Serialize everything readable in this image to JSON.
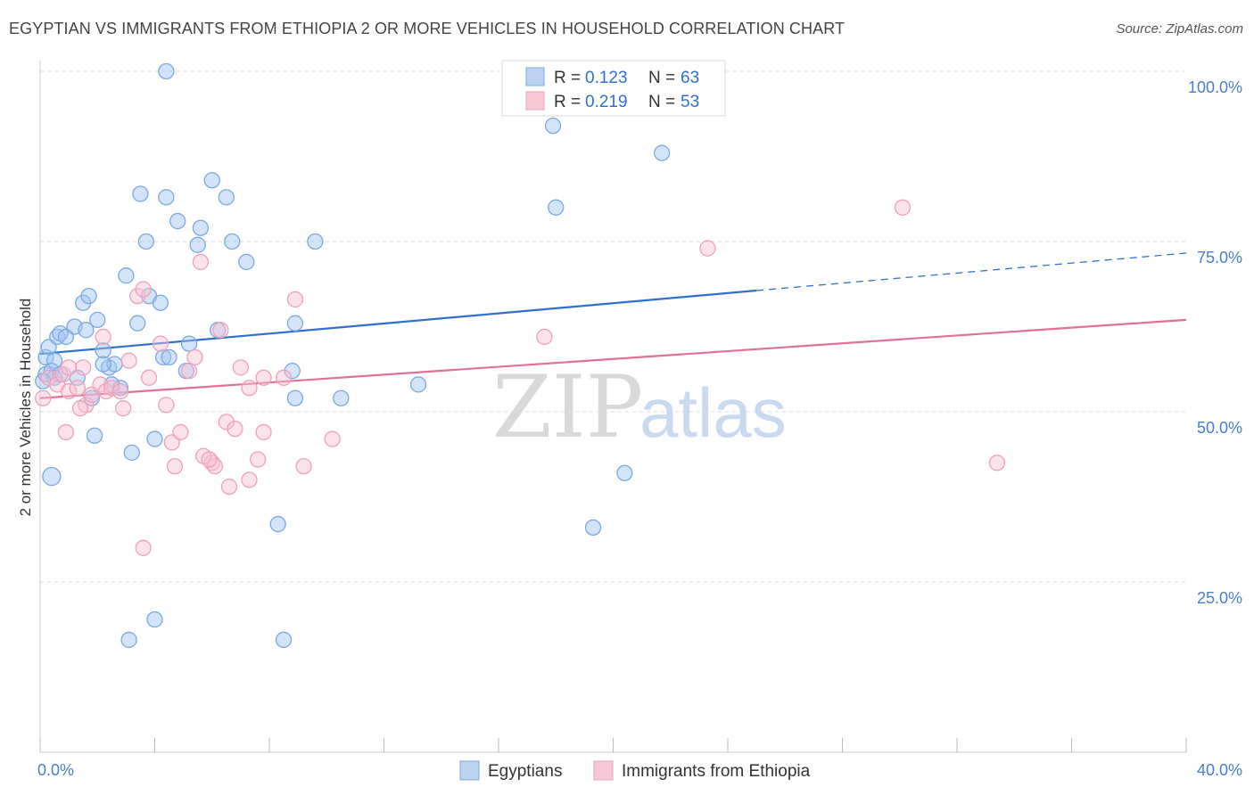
{
  "title": "EGYPTIAN VS IMMIGRANTS FROM ETHIOPIA 2 OR MORE VEHICLES IN HOUSEHOLD CORRELATION CHART",
  "source": "Source: ZipAtlas.com",
  "watermark": {
    "zip": "ZIP",
    "atlas": "atlas"
  },
  "colors": {
    "blue": "#7aa9e0",
    "blue_line": "#2f6fd0",
    "pink": "#f0a0bb",
    "pink_line": "#e07098"
  },
  "legend": {
    "rows": [
      {
        "r_label": "R = ",
        "r_value": "0.123",
        "n_label": "N = ",
        "n_value": "63"
      },
      {
        "r_label": "R = ",
        "r_value": "0.219",
        "n_label": "N = ",
        "n_value": "53"
      }
    ]
  },
  "chart_data": {
    "type": "scatter",
    "title": "EGYPTIAN VS IMMIGRANTS FROM ETHIOPIA 2 OR MORE VEHICLES IN HOUSEHOLD CORRELATION CHART",
    "xlabel": "",
    "ylabel": "2 or more Vehicles in Household",
    "xlim": [
      0,
      40
    ],
    "ylim": [
      0,
      100
    ],
    "x_tick_labels": [
      "0.0%",
      "40.0%"
    ],
    "y_ticks": [
      100,
      75,
      50,
      25
    ],
    "y_tick_labels": [
      "100.0%",
      "75.0%",
      "50.0%",
      "25.0%"
    ],
    "legend_position": "top-center",
    "grid": true,
    "series": [
      {
        "name": "Egyptians",
        "color": "#7aa9e0",
        "trend": {
          "x0": 0,
          "y0": 58.5,
          "x1": 25,
          "y1": 67.8,
          "dash_to_x": 40,
          "dash_to_y": 73.3
        },
        "points": [
          [
            0.2,
            58.0
          ],
          [
            0.3,
            59.5
          ],
          [
            0.5,
            57.5
          ],
          [
            0.6,
            61.0
          ],
          [
            0.7,
            61.5
          ],
          [
            0.9,
            61.0
          ],
          [
            0.2,
            55.5
          ],
          [
            0.4,
            56.0
          ],
          [
            0.5,
            55.0
          ],
          [
            0.7,
            55.5
          ],
          [
            1.2,
            62.5
          ],
          [
            1.5,
            66.0
          ],
          [
            1.7,
            67.0
          ],
          [
            1.6,
            62.0
          ],
          [
            2.0,
            63.5
          ],
          [
            2.2,
            59.0
          ],
          [
            2.4,
            56.5
          ],
          [
            2.6,
            57.0
          ],
          [
            2.8,
            53.5
          ],
          [
            1.3,
            55.0
          ],
          [
            1.8,
            52.0
          ],
          [
            2.2,
            57.0
          ],
          [
            2.5,
            54.0
          ],
          [
            3.0,
            70.0
          ],
          [
            3.4,
            63.0
          ],
          [
            3.5,
            82.0
          ],
          [
            3.7,
            75.0
          ],
          [
            3.8,
            67.0
          ],
          [
            4.2,
            66.0
          ],
          [
            4.3,
            58.0
          ],
          [
            4.5,
            58.0
          ],
          [
            4.4,
            81.5
          ],
          [
            4.8,
            78.0
          ],
          [
            5.2,
            60.0
          ],
          [
            5.5,
            74.5
          ],
          [
            5.6,
            77.0
          ],
          [
            6.0,
            84.0
          ],
          [
            6.2,
            62.0
          ],
          [
            6.5,
            81.5
          ],
          [
            6.7,
            75.0
          ],
          [
            7.2,
            72.0
          ],
          [
            8.9,
            63.0
          ],
          [
            9.6,
            75.0
          ],
          [
            8.8,
            56.0
          ],
          [
            8.9,
            52.0
          ],
          [
            10.5,
            52.0
          ],
          [
            13.2,
            54.0
          ],
          [
            4.4,
            100.0
          ],
          [
            17.9,
            92.0
          ],
          [
            18.0,
            80.0
          ],
          [
            21.7,
            88.0
          ],
          [
            20.4,
            41.0
          ],
          [
            19.3,
            33.0
          ],
          [
            8.3,
            33.5
          ],
          [
            3.1,
            16.5
          ],
          [
            4.0,
            19.5
          ],
          [
            8.5,
            16.5
          ],
          [
            1.9,
            46.5
          ],
          [
            3.2,
            44.0
          ],
          [
            4.0,
            46.0
          ],
          [
            0.4,
            40.5
          ],
          [
            5.1,
            56.0
          ],
          [
            0.1,
            54.5
          ]
        ]
      },
      {
        "name": "Immigrants from Ethiopia",
        "color": "#f0a0bb",
        "trend": {
          "x0": 0,
          "y0": 52.0,
          "x1": 40,
          "y1": 63.5
        },
        "points": [
          [
            0.1,
            52.0
          ],
          [
            0.3,
            55.0
          ],
          [
            0.6,
            54.0
          ],
          [
            0.8,
            55.5
          ],
          [
            1.0,
            53.0
          ],
          [
            1.3,
            53.5
          ],
          [
            1.5,
            56.5
          ],
          [
            1.6,
            51.0
          ],
          [
            1.8,
            52.5
          ],
          [
            2.1,
            54.0
          ],
          [
            2.3,
            53.0
          ],
          [
            2.5,
            53.5
          ],
          [
            2.8,
            53.0
          ],
          [
            3.1,
            57.5
          ],
          [
            3.4,
            67.0
          ],
          [
            3.6,
            68.0
          ],
          [
            3.8,
            55.0
          ],
          [
            4.2,
            60.0
          ],
          [
            4.4,
            51.0
          ],
          [
            4.6,
            45.5
          ],
          [
            4.9,
            47.0
          ],
          [
            5.2,
            56.0
          ],
          [
            5.4,
            58.0
          ],
          [
            5.6,
            72.0
          ],
          [
            6.0,
            42.5
          ],
          [
            6.3,
            62.0
          ],
          [
            6.5,
            48.5
          ],
          [
            6.8,
            47.5
          ],
          [
            7.0,
            56.5
          ],
          [
            7.3,
            53.5
          ],
          [
            7.6,
            43.0
          ],
          [
            7.8,
            55.0
          ],
          [
            7.8,
            47.0
          ],
          [
            8.5,
            55.0
          ],
          [
            8.9,
            66.5
          ],
          [
            9.2,
            42.0
          ],
          [
            10.2,
            46.0
          ],
          [
            2.2,
            61.0
          ],
          [
            1.4,
            50.5
          ],
          [
            0.9,
            47.0
          ],
          [
            2.9,
            50.5
          ],
          [
            3.6,
            30.0
          ],
          [
            4.7,
            42.0
          ],
          [
            5.7,
            43.5
          ],
          [
            6.1,
            42.0
          ],
          [
            6.6,
            39.0
          ],
          [
            7.3,
            40.0
          ],
          [
            17.6,
            61.0
          ],
          [
            23.3,
            74.0
          ],
          [
            30.1,
            80.0
          ],
          [
            33.4,
            42.5
          ],
          [
            1.0,
            56.5
          ],
          [
            5.9,
            43.0
          ]
        ]
      }
    ]
  }
}
